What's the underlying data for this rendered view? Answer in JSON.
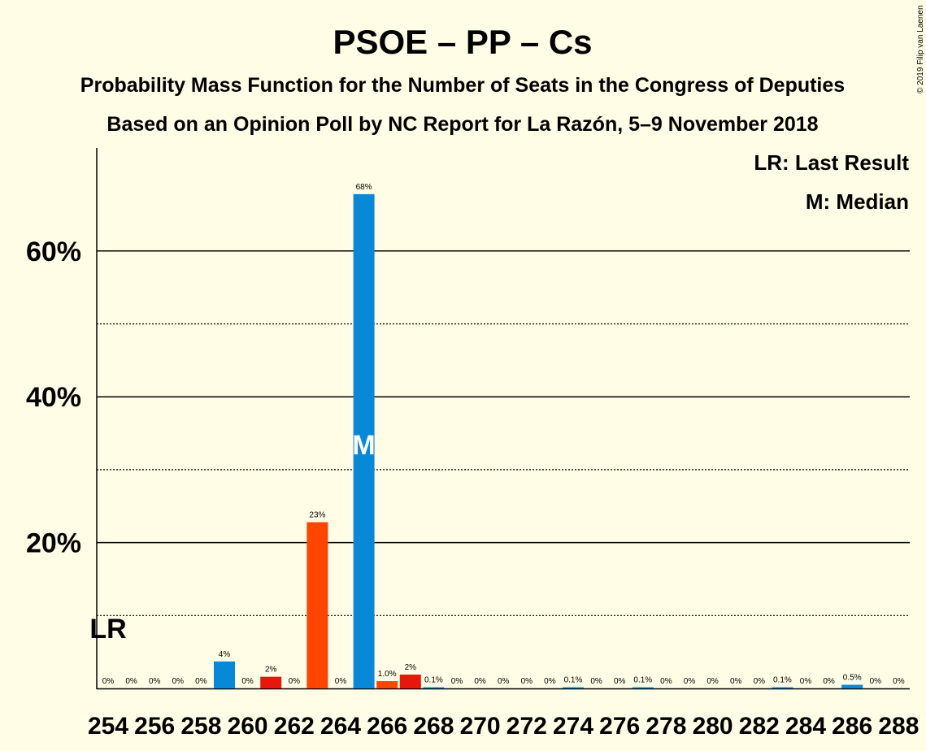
{
  "title": "PSOE – PP – Cs",
  "subtitle": "Probability Mass Function for the Number of Seats in the Congress of Deputies",
  "subtitle2": "Based on an Opinion Poll by NC Report for La Razón, 5–9 November 2018",
  "copyright": "© 2019 Filip van Laenen",
  "legend": {
    "last_result": "LR: Last Result",
    "median": "M: Median"
  },
  "markers": {
    "lr_label": "LR",
    "lr_seat": 254,
    "median_label": "M",
    "median_seat": 265
  },
  "colors": {
    "background": "#fffde6",
    "blue": "#0a88d8",
    "red": "#e8170c",
    "orange": "#ff4500"
  },
  "chart_data": {
    "type": "bar",
    "x": [
      254,
      255,
      256,
      257,
      258,
      259,
      260,
      261,
      262,
      263,
      264,
      265,
      266,
      267,
      268,
      269,
      270,
      271,
      272,
      273,
      274,
      275,
      276,
      277,
      278,
      279,
      280,
      281,
      282,
      283,
      284,
      285,
      286,
      287,
      288
    ],
    "values": [
      0,
      0,
      0,
      0,
      0,
      3.7,
      0,
      1.6,
      0,
      22.8,
      0,
      67.8,
      1.0,
      1.9,
      0.1,
      0,
      0,
      0,
      0,
      0,
      0.1,
      0,
      0,
      0.1,
      0,
      0,
      0,
      0,
      0,
      0.1,
      0,
      0,
      0.5,
      0,
      0
    ],
    "labels": [
      "0%",
      "0%",
      "0%",
      "0%",
      "0%",
      "4%",
      "0%",
      "2%",
      "0%",
      "23%",
      "0%",
      "68%",
      "1.0%",
      "2%",
      "0.1%",
      "0%",
      "0%",
      "0%",
      "0%",
      "0%",
      "0.1%",
      "0%",
      "0%",
      "0.1%",
      "0%",
      "0%",
      "0%",
      "0%",
      "0%",
      "0.1%",
      "0%",
      "0%",
      "0.5%",
      "0%",
      "0%"
    ],
    "bar_colors": [
      "blue",
      "blue",
      "blue",
      "blue",
      "blue",
      "blue",
      "blue",
      "red",
      "blue",
      "orange",
      "blue",
      "blue",
      "orange",
      "red",
      "blue",
      "blue",
      "blue",
      "blue",
      "blue",
      "blue",
      "blue",
      "blue",
      "blue",
      "blue",
      "blue",
      "blue",
      "blue",
      "blue",
      "blue",
      "blue",
      "blue",
      "blue",
      "blue",
      "blue",
      "blue"
    ],
    "x_tick_labels": [
      "254",
      "256",
      "258",
      "260",
      "262",
      "264",
      "266",
      "268",
      "270",
      "272",
      "274",
      "276",
      "278",
      "280",
      "282",
      "284",
      "286",
      "288"
    ],
    "y_tick_labels": [
      "20%",
      "40%",
      "60%"
    ],
    "ylim": [
      0,
      74
    ],
    "y_major_gridlines": [
      20,
      40,
      60
    ],
    "y_minor_gridlines": [
      10,
      30,
      50
    ],
    "grid": true,
    "legend_position": "top-right"
  }
}
